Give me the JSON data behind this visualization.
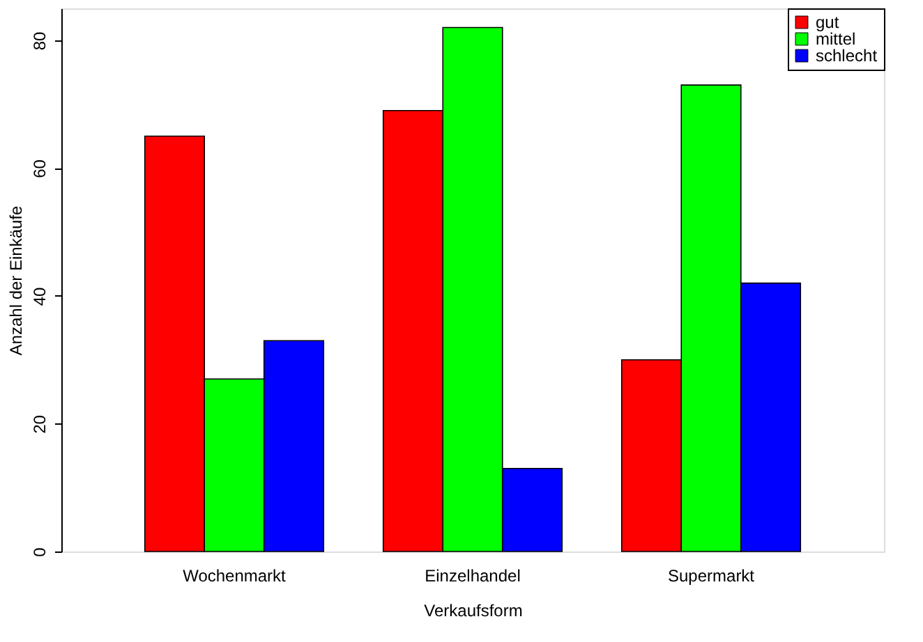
{
  "chart_data": {
    "type": "bar",
    "xlabel": "Verkaufsform",
    "ylabel": "Anzahl der Einkäufe",
    "categories": [
      "Wochenmarkt",
      "Einzelhandel",
      "Supermarkt"
    ],
    "series": [
      {
        "name": "gut",
        "color": "#ff0000",
        "values": [
          65,
          69,
          30
        ]
      },
      {
        "name": "mittel",
        "color": "#00ff00",
        "values": [
          27,
          82,
          73
        ]
      },
      {
        "name": "schlecht",
        "color": "#0000ff",
        "values": [
          33,
          13,
          42
        ]
      }
    ],
    "ylim": [
      0,
      85
    ],
    "yticks": [
      0,
      20,
      40,
      60,
      80
    ],
    "grid": false,
    "legend": "top right"
  }
}
